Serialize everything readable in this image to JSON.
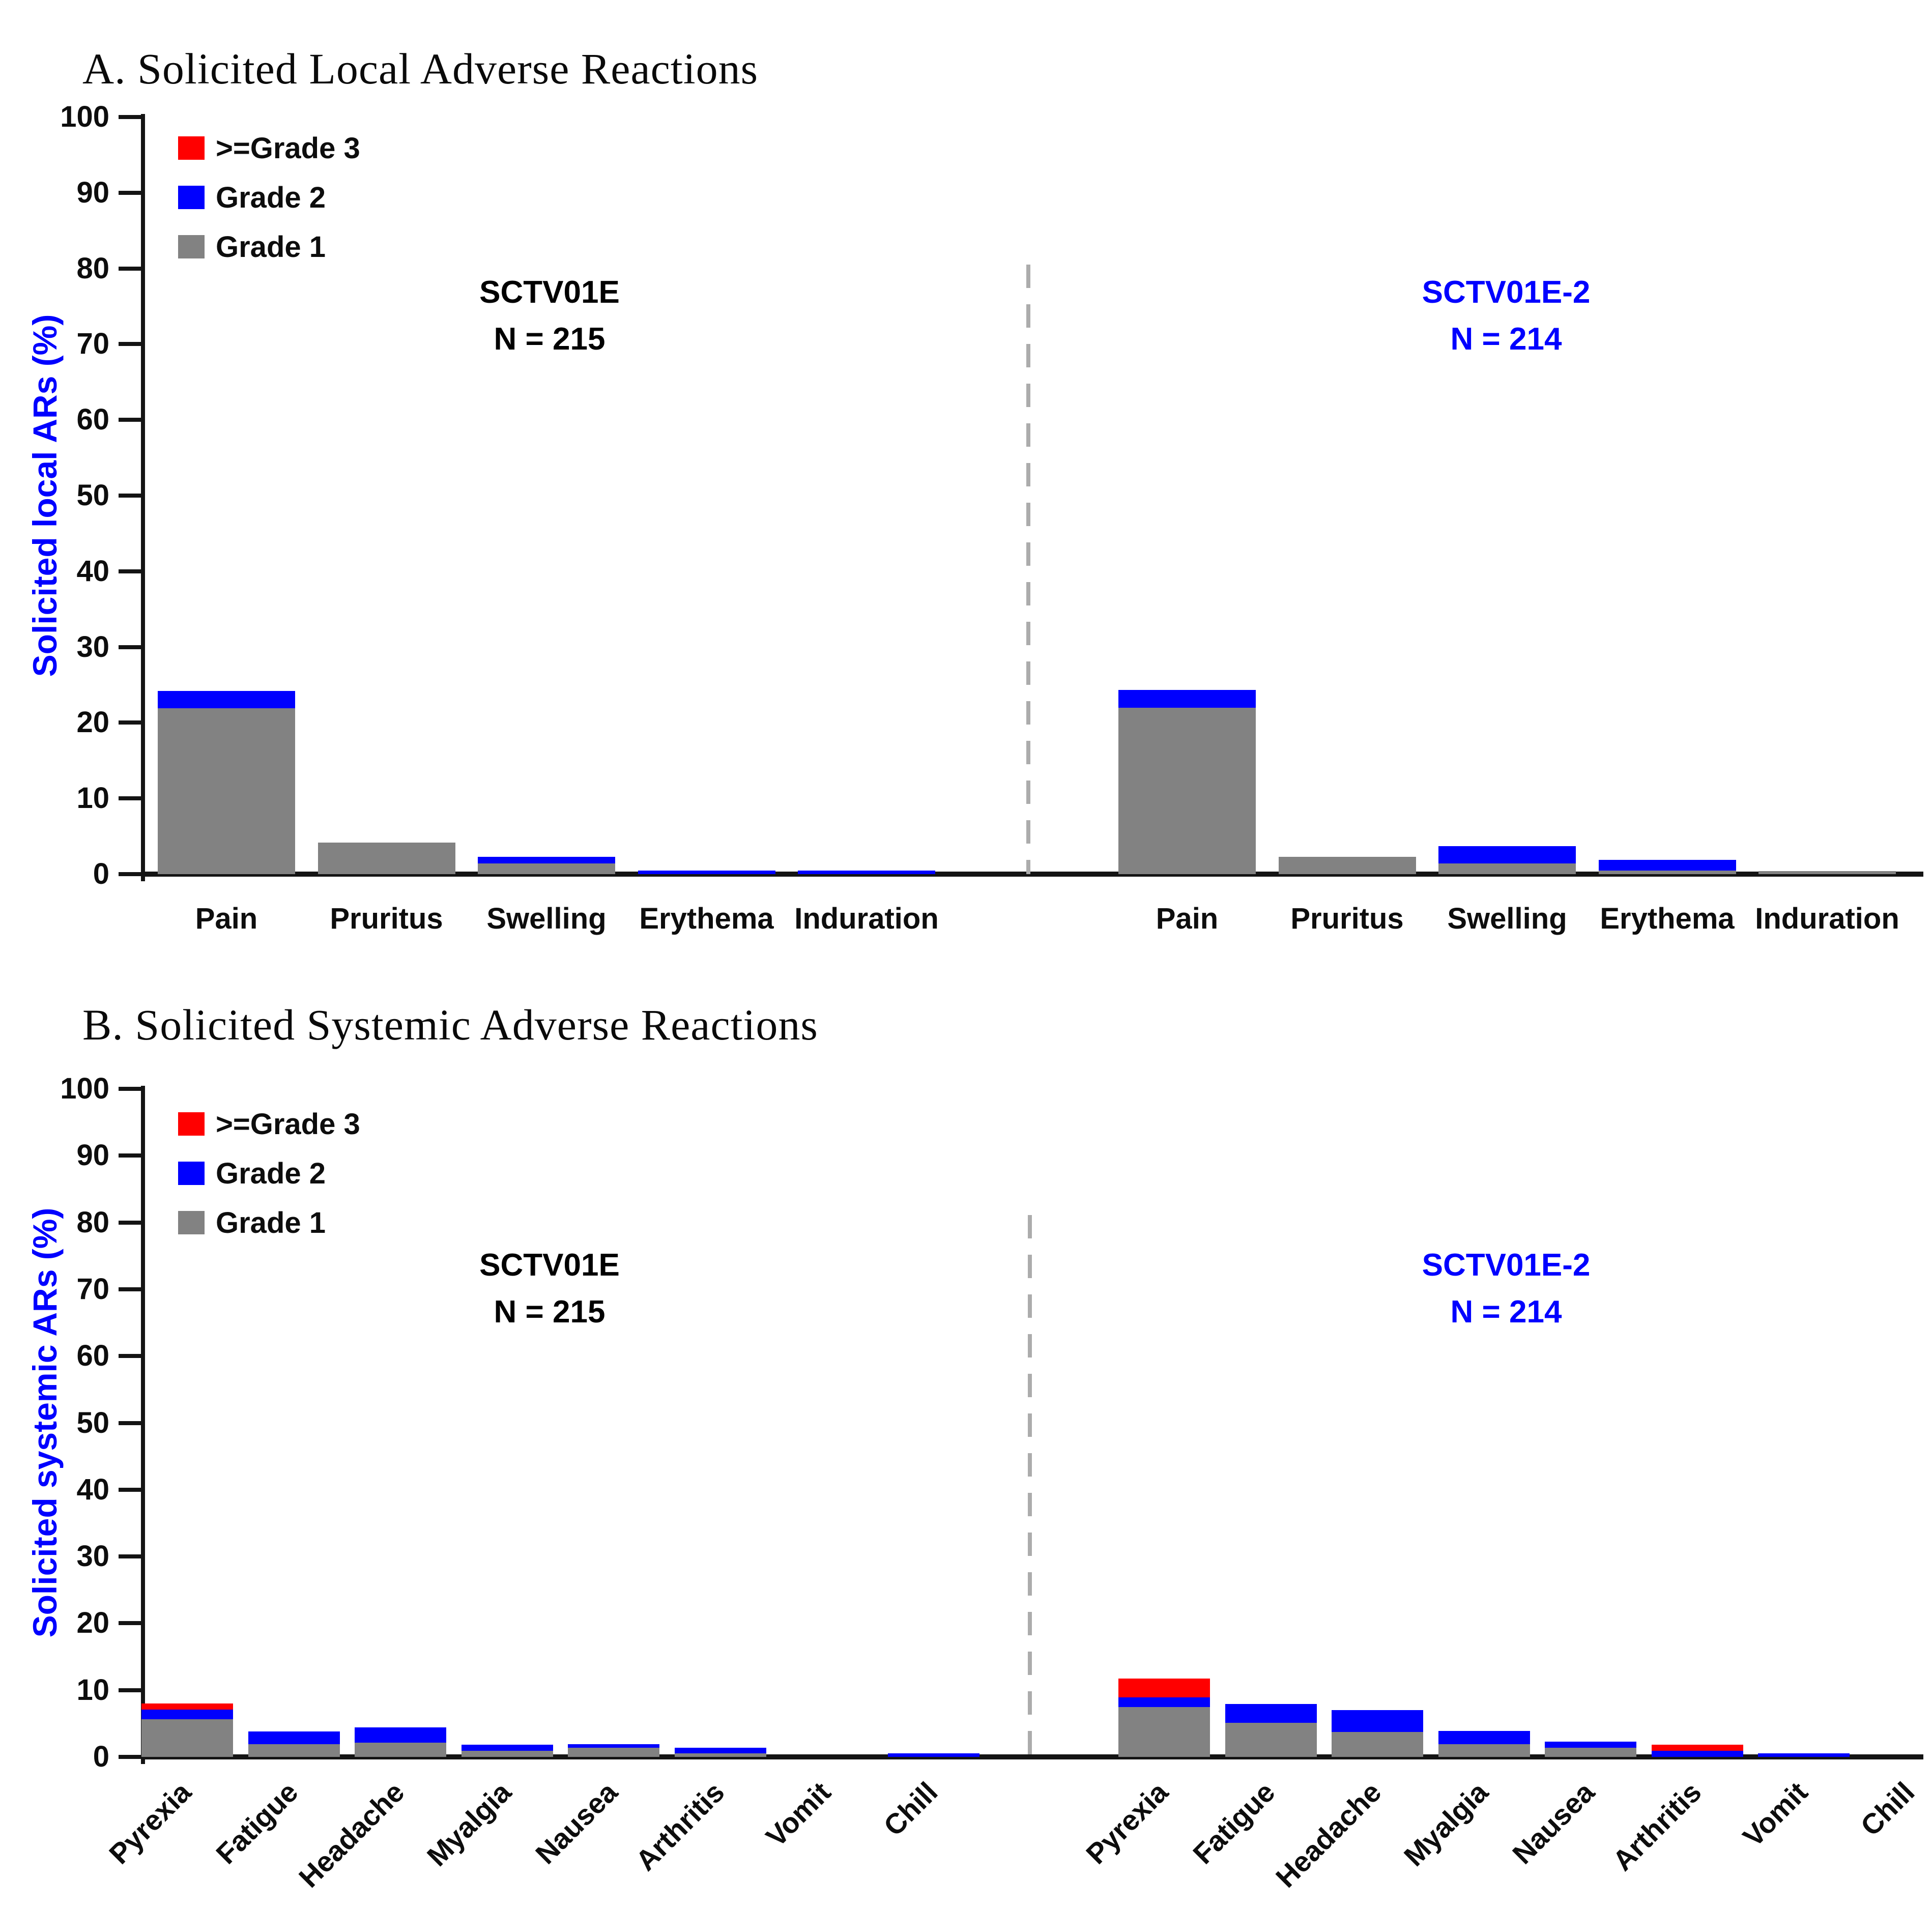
{
  "chart_data": [
    {
      "type": "stacked_bar",
      "panel_label": "A",
      "title": "A. Solicited Local Adverse Reactions",
      "ylabel": "Solicited local ARs (%)",
      "ylabel_color": "#0000FF",
      "ylim": [
        0,
        100
      ],
      "ytick_step": 10,
      "grid": false,
      "legend_position": "top-left-inside",
      "legend": [
        {
          "label": ">=Grade 3",
          "key": "grade3",
          "color": "#FF0000"
        },
        {
          "label": "Grade 2",
          "key": "grade2",
          "color": "#0000FE"
        },
        {
          "label": "Grade 1",
          "key": "grade1",
          "color": "#828282"
        }
      ],
      "categories": [
        "Pain",
        "Pruritus",
        "Swelling",
        "Erythema",
        "Induration"
      ],
      "groups": [
        {
          "name": "SCTV01E",
          "n_label": "N = 215",
          "title_color": "#000000",
          "series": {
            "grade1": [
              21.9,
              4.2,
              1.4,
              0,
              0
            ],
            "grade2": [
              2.3,
              0,
              0.9,
              0.5,
              0.5
            ],
            "grade3": [
              0,
              0,
              0,
              0,
              0
            ]
          }
        },
        {
          "name": "SCTV01E-2",
          "n_label": "N = 214",
          "title_color": "#0000FF",
          "series": {
            "grade1": [
              22.0,
              2.3,
              1.4,
              0.5,
              0.4
            ],
            "grade2": [
              2.3,
              0,
              2.3,
              1.4,
              0
            ],
            "grade3": [
              0,
              0,
              0,
              0,
              0
            ]
          }
        }
      ],
      "divider_style": "dashed"
    },
    {
      "type": "stacked_bar",
      "panel_label": "B",
      "title": "B. Solicited Systemic Adverse Reactions",
      "ylabel": "Solicited systemic ARs (%)",
      "ylabel_color": "#0000FF",
      "ylim": [
        0,
        100
      ],
      "ytick_step": 10,
      "grid": false,
      "legend_position": "top-left-inside",
      "xlabel_rotation": -45,
      "legend": [
        {
          "label": ">=Grade 3",
          "key": "grade3",
          "color": "#FF0000"
        },
        {
          "label": "Grade 2",
          "key": "grade2",
          "color": "#0000FE"
        },
        {
          "label": "Grade 1",
          "key": "grade1",
          "color": "#828282"
        }
      ],
      "categories": [
        "Pyrexia",
        "Fatigue",
        "Headache",
        "Myalgia",
        "Nausea",
        "Arthritis",
        "Vomit",
        "Chill"
      ],
      "groups": [
        {
          "name": "SCTV01E",
          "n_label": "N = 215",
          "title_color": "#000000",
          "series": {
            "grade1": [
              5.6,
              1.9,
              2.1,
              0.9,
              1.4,
              0.5,
              0,
              0
            ],
            "grade2": [
              1.5,
              1.9,
              2.3,
              0.9,
              0.5,
              0.9,
              0,
              0.5
            ],
            "grade3": [
              0.9,
              0,
              0,
              0,
              0,
              0,
              0,
              0
            ]
          }
        },
        {
          "name": "SCTV01E-2",
          "n_label": "N = 214",
          "title_color": "#0000FF",
          "series": {
            "grade1": [
              7.5,
              5.1,
              3.7,
              1.9,
              1.4,
              0,
              0,
              0
            ],
            "grade2": [
              1.4,
              2.8,
              3.3,
              2.0,
              0.9,
              0.9,
              0.5,
              0
            ],
            "grade3": [
              2.8,
              0,
              0,
              0,
              0,
              0.9,
              0,
              0
            ]
          }
        }
      ],
      "divider_style": "dashed"
    }
  ]
}
